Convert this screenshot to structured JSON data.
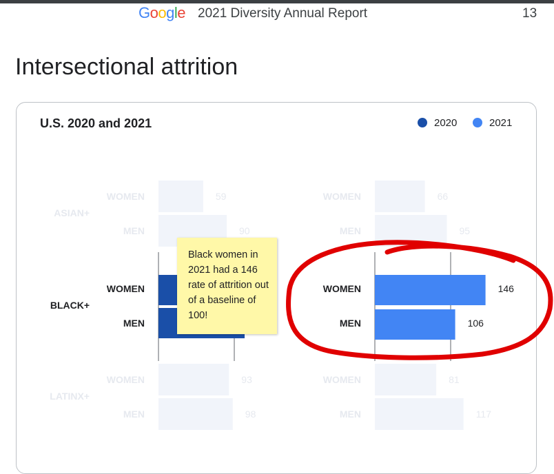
{
  "header": {
    "logo": [
      "G",
      "o",
      "o",
      "g",
      "l",
      "e"
    ],
    "logo_colors": [
      "#4285f4",
      "#ea4335",
      "#fbbc05",
      "#4285f4",
      "#34a853",
      "#ea4335"
    ],
    "report_title": "2021 Diversity Annual Report",
    "page_number": "13"
  },
  "page_title": "Intersectional attrition",
  "sticky_note": "Black women in 2021 had a 146 rate of attrition out of a baseline of 100!",
  "colors": {
    "series_2020": "#1a4fa8",
    "series_2021": "#4285f4",
    "faded_bar": "#f1f4fa",
    "annotation": "#e00000"
  },
  "chart_data": {
    "type": "bar",
    "orientation": "horizontal",
    "title": "U.S. 2020 and 2021",
    "legend_position": "top-right",
    "groups": [
      "ASIAN+",
      "BLACK+",
      "LATINX+"
    ],
    "subcategories": [
      "WOMEN",
      "MEN"
    ],
    "highlighted_group": "BLACK+",
    "series": [
      {
        "name": "2020",
        "values": {
          "ASIAN+": [
            59,
            90
          ],
          "BLACK+": [
            null,
            null
          ],
          "LATINX+": [
            93,
            98
          ]
        }
      },
      {
        "name": "2021",
        "values": {
          "ASIAN+": [
            66,
            95
          ],
          "BLACK+": [
            146,
            106
          ],
          "LATINX+": [
            81,
            117
          ]
        }
      }
    ],
    "baseline": 100
  }
}
